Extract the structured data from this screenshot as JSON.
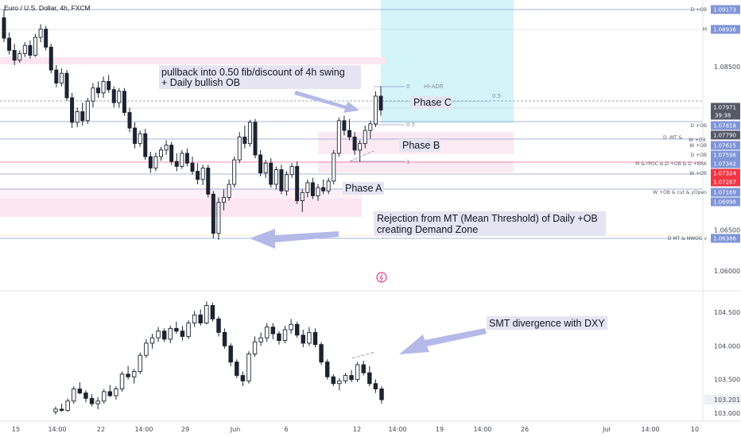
{
  "header": {
    "title": "Euro / U.S. Dollar, 4h, FXCM"
  },
  "colors": {
    "up": "#1d2330",
    "down": "#1d2330",
    "level_line": "#8c9ccc",
    "tag_blue": "#7f95d8",
    "tag_dark": "#555966",
    "tag_pink": "#f23645",
    "zone_pink": "#fce6f1",
    "zone_cyan": "#c4f0f7",
    "arrow": "#b4b9e8",
    "label_box": "#e6e4f2"
  },
  "chart_data": [
    {
      "type": "candlestick",
      "series_name": "Euro / U.S. Dollar, 4h, FXCM",
      "y_axis_ticks": [
        "1.08500",
        "1.06500",
        "1.06000"
      ],
      "y_range": [
        1.06,
        1.092
      ],
      "x_tick_labels": [
        "15",
        "14:00",
        "22",
        "14:00",
        "29",
        "Jun",
        "6",
        "12",
        "14:00",
        "19",
        "14:00",
        "26",
        "Jul",
        "14:00",
        "10"
      ],
      "candles": [
        [
          1.091,
          1.092,
          1.088,
          1.0885
        ],
        [
          1.0885,
          1.0892,
          1.0865,
          1.087
        ],
        [
          1.087,
          1.0878,
          1.0852,
          1.0858
        ],
        [
          1.0858,
          1.087,
          1.0855,
          1.0866
        ],
        [
          1.0866,
          1.088,
          1.0862,
          1.0876
        ],
        [
          1.0876,
          1.0882,
          1.086,
          1.0864
        ],
        [
          1.0864,
          1.089,
          1.0862,
          1.0886
        ],
        [
          1.0886,
          1.0902,
          1.088,
          1.0896
        ],
        [
          1.0896,
          1.09,
          1.087,
          1.0874
        ],
        [
          1.0874,
          1.0878,
          1.0842,
          1.0846
        ],
        [
          1.0846,
          1.0852,
          1.0825,
          1.083
        ],
        [
          1.083,
          1.0848,
          1.0826,
          1.0842
        ],
        [
          1.0842,
          1.0846,
          1.0808,
          1.0812
        ],
        [
          1.0812,
          1.0818,
          1.0775,
          1.0782
        ],
        [
          1.0782,
          1.08,
          1.0776,
          1.0795
        ],
        [
          1.0795,
          1.0806,
          1.0778,
          1.0784
        ],
        [
          1.0784,
          1.0812,
          1.078,
          1.0808
        ],
        [
          1.0808,
          1.083,
          1.08,
          1.0824
        ],
        [
          1.0824,
          1.0832,
          1.0812,
          1.0818
        ],
        [
          1.0818,
          1.0838,
          1.0812,
          1.0832
        ],
        [
          1.0832,
          1.084,
          1.0818,
          1.0822
        ],
        [
          1.0822,
          1.0826,
          1.08,
          1.0806
        ],
        [
          1.0806,
          1.0824,
          1.08,
          1.082
        ],
        [
          1.082,
          1.0824,
          1.079,
          1.0794
        ],
        [
          1.0794,
          1.08,
          1.077,
          1.0775
        ],
        [
          1.0775,
          1.0782,
          1.075,
          1.0756
        ],
        [
          1.0756,
          1.0772,
          1.0752,
          1.0768
        ],
        [
          1.0768,
          1.0774,
          1.0736,
          1.074
        ],
        [
          1.074,
          1.0746,
          1.072,
          1.0726
        ],
        [
          1.0726,
          1.0745,
          1.0722,
          1.074
        ],
        [
          1.074,
          1.0752,
          1.0735,
          1.0748
        ],
        [
          1.0748,
          1.076,
          1.0742,
          1.0754
        ],
        [
          1.0754,
          1.0758,
          1.073,
          1.0734
        ],
        [
          1.0734,
          1.0744,
          1.0722,
          1.0728
        ],
        [
          1.0728,
          1.0748,
          1.0725,
          1.0744
        ],
        [
          1.0744,
          1.075,
          1.0728,
          1.0732
        ],
        [
          1.0732,
          1.074,
          1.0718,
          1.0722
        ],
        [
          1.0722,
          1.0732,
          1.0706,
          1.0712
        ],
        [
          1.0712,
          1.073,
          1.0705,
          1.0726
        ],
        [
          1.0726,
          1.073,
          1.069,
          1.0694
        ],
        [
          1.0694,
          1.0698,
          1.064,
          1.0646
        ],
        [
          1.0646,
          1.069,
          1.0638,
          1.0684
        ],
        [
          1.0684,
          1.07,
          1.0674,
          1.069
        ],
        [
          1.069,
          1.0712,
          1.0686,
          1.0706
        ],
        [
          1.0706,
          1.074,
          1.0702,
          1.0736
        ],
        [
          1.0736,
          1.077,
          1.0732,
          1.0764
        ],
        [
          1.0764,
          1.0778,
          1.075,
          1.0756
        ],
        [
          1.0756,
          1.0785,
          1.0752,
          1.0782
        ],
        [
          1.0782,
          1.0786,
          1.0738,
          1.0742
        ],
        [
          1.0742,
          1.0748,
          1.0716,
          1.072
        ],
        [
          1.072,
          1.0736,
          1.0714,
          1.0732
        ],
        [
          1.0732,
          1.0738,
          1.0702,
          1.0706
        ],
        [
          1.0706,
          1.0728,
          1.07,
          1.0724
        ],
        [
          1.0724,
          1.073,
          1.0694,
          1.0698
        ],
        [
          1.0698,
          1.0722,
          1.0692,
          1.0718
        ],
        [
          1.0718,
          1.0732,
          1.0714,
          1.0728
        ],
        [
          1.0728,
          1.0734,
          1.0682,
          1.0686
        ],
        [
          1.0686,
          1.07,
          1.0672,
          1.0696
        ],
        [
          1.0696,
          1.0712,
          1.069,
          1.0708
        ],
        [
          1.0708,
          1.0714,
          1.0688,
          1.0692
        ],
        [
          1.0692,
          1.0706,
          1.0686,
          1.0702
        ],
        [
          1.0702,
          1.0712,
          1.0694,
          1.0698
        ],
        [
          1.0698,
          1.0714,
          1.0694,
          1.071
        ],
        [
          1.071,
          1.0748,
          1.0706,
          1.0744
        ],
        [
          1.0744,
          1.0788,
          1.074,
          1.0784
        ],
        [
          1.0784,
          1.079,
          1.0766,
          1.0772
        ],
        [
          1.0772,
          1.0786,
          1.076,
          1.0764
        ],
        [
          1.0764,
          1.077,
          1.0742,
          1.0748
        ],
        [
          1.0748,
          1.076,
          1.0734,
          1.0756
        ],
        [
          1.0756,
          1.0778,
          1.075,
          1.0772
        ],
        [
          1.0772,
          1.0784,
          1.0762,
          1.078
        ],
        [
          1.078,
          1.082,
          1.0776,
          1.0814
        ],
        [
          1.0814,
          1.0826,
          1.079,
          1.0797
        ]
      ]
    },
    {
      "type": "candlestick",
      "series_name": "DXY",
      "y_axis_ticks": [
        "104.500",
        "104.000",
        "103.500",
        "103.000"
      ],
      "y_range": [
        102.98,
        104.7
      ],
      "price_tag": "103.201",
      "candles": [
        [
          103.02,
          103.1,
          102.98,
          103.06
        ],
        [
          103.06,
          103.14,
          103.02,
          103.04
        ],
        [
          103.04,
          103.22,
          103.02,
          103.18
        ],
        [
          103.18,
          103.4,
          103.14,
          103.36
        ],
        [
          103.36,
          103.46,
          103.28,
          103.3
        ],
        [
          103.3,
          103.34,
          103.16,
          103.22
        ],
        [
          103.22,
          103.28,
          103.1,
          103.14
        ],
        [
          103.14,
          103.24,
          103.06,
          103.18
        ],
        [
          103.18,
          103.36,
          103.14,
          103.32
        ],
        [
          103.32,
          103.42,
          103.24,
          103.26
        ],
        [
          103.26,
          103.4,
          103.2,
          103.36
        ],
        [
          103.36,
          103.62,
          103.32,
          103.58
        ],
        [
          103.58,
          103.7,
          103.5,
          103.54
        ],
        [
          103.54,
          103.66,
          103.44,
          103.62
        ],
        [
          103.62,
          103.9,
          103.58,
          103.86
        ],
        [
          103.86,
          104.1,
          103.82,
          104.04
        ],
        [
          104.04,
          104.18,
          103.96,
          104.12
        ],
        [
          104.12,
          104.28,
          104.06,
          104.22
        ],
        [
          104.22,
          104.26,
          104.06,
          104.1
        ],
        [
          104.1,
          104.3,
          104.04,
          104.26
        ],
        [
          104.26,
          104.36,
          104.18,
          104.22
        ],
        [
          104.22,
          104.3,
          104.08,
          104.14
        ],
        [
          104.14,
          104.38,
          104.1,
          104.34
        ],
        [
          104.34,
          104.52,
          104.28,
          104.46
        ],
        [
          104.46,
          104.54,
          104.3,
          104.34
        ],
        [
          104.34,
          104.66,
          104.32,
          104.6
        ],
        [
          104.6,
          104.64,
          104.36,
          104.4
        ],
        [
          104.4,
          104.44,
          104.14,
          104.2
        ],
        [
          104.2,
          104.26,
          103.96,
          104.0
        ],
        [
          104.0,
          104.04,
          103.7,
          103.76
        ],
        [
          103.76,
          103.8,
          103.52,
          103.56
        ],
        [
          103.56,
          103.62,
          103.4,
          103.48
        ],
        [
          103.48,
          103.92,
          103.44,
          103.88
        ],
        [
          103.88,
          104.14,
          103.84,
          104.06
        ],
        [
          104.06,
          104.2,
          104.0,
          104.12
        ],
        [
          104.12,
          104.34,
          104.06,
          104.28
        ],
        [
          104.28,
          104.34,
          104.1,
          104.18
        ],
        [
          104.18,
          104.22,
          104.02,
          104.08
        ],
        [
          104.08,
          104.3,
          104.04,
          104.24
        ],
        [
          104.24,
          104.4,
          104.18,
          104.32
        ],
        [
          104.32,
          104.36,
          104.12,
          104.16
        ],
        [
          104.16,
          104.24,
          103.98,
          104.04
        ],
        [
          104.04,
          104.28,
          104.0,
          104.2
        ],
        [
          104.2,
          104.26,
          103.98,
          104.02
        ],
        [
          104.02,
          104.06,
          103.72,
          103.76
        ],
        [
          103.76,
          103.8,
          103.5,
          103.54
        ],
        [
          103.54,
          103.58,
          103.4,
          103.44
        ],
        [
          103.44,
          103.52,
          103.34,
          103.48
        ],
        [
          103.48,
          103.6,
          103.44,
          103.56
        ],
        [
          103.56,
          103.64,
          103.46,
          103.5
        ],
        [
          103.5,
          103.76,
          103.46,
          103.72
        ],
        [
          103.72,
          103.78,
          103.56,
          103.6
        ],
        [
          103.6,
          103.7,
          103.4,
          103.44
        ],
        [
          103.44,
          103.5,
          103.3,
          103.36
        ],
        [
          103.36,
          103.4,
          103.14,
          103.2
        ]
      ]
    }
  ],
  "price_tags": [
    {
      "label": "D +OB",
      "value": "1.09173",
      "color": "blue"
    },
    {
      "label": "M",
      "value": "1.08936",
      "color": "blue"
    },
    {
      "label": "",
      "value": "1.07971",
      "color": "dark",
      "extra": "39:38"
    },
    {
      "label": "D +OB",
      "value": "1.07818",
      "color": "blue"
    },
    {
      "label": "",
      "value": "1.07790",
      "color": "dark"
    },
    {
      "label": "W +OB",
      "value": "1.07615",
      "color": "blue"
    },
    {
      "label": "D +OB",
      "value": "1.07596",
      "color": "blue"
    },
    {
      "label": "M & rPOC & D +OB & D +BRK",
      "value": "1.07342",
      "color": "blue"
    },
    {
      "label": "W +OB",
      "value": "1.07324",
      "color": "pink"
    },
    {
      "label": "",
      "value": "1.07287",
      "color": "pink"
    },
    {
      "label": "W +OB & cut & yOpen",
      "value": "1.07169",
      "color": "blue"
    },
    {
      "label": "",
      "value": "1.06998",
      "color": "blue"
    },
    {
      "label": "D MT & NWOG v",
      "value": "1.06386",
      "color": "blue"
    }
  ],
  "mid_labels": {
    "mt": "D -MT &",
    "w_ob": "W +OB"
  },
  "annotations": {
    "pullback_line1": "pullback into 0.50 fib/discount of 4h swing",
    "pullback_line2": "+ Daily bullish OB",
    "phase_c": "Phase C",
    "phase_b": "Phase B",
    "phase_a": "Phase A",
    "rejection_line1": "Rejection from MT (Mean Threshold) of Daily +OB",
    "rejection_line2": "creating Demand Zone",
    "smt": "SMT divergence with DXY",
    "fib_0": "0",
    "fib_05": "0.5",
    "fib_1": "1",
    "fib_05_right": "0.5",
    "hi_adr": "HI-ADR"
  }
}
